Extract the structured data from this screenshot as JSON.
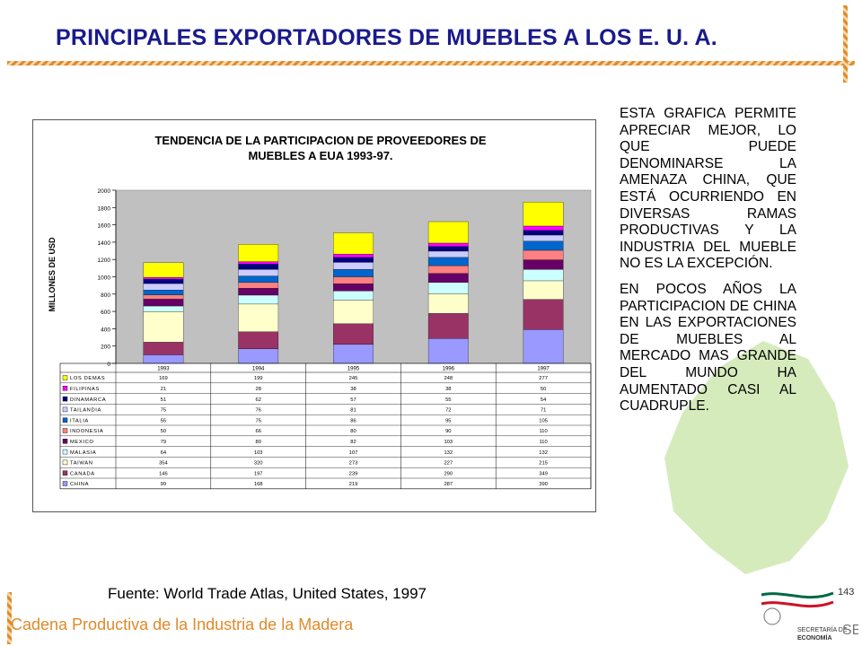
{
  "page": {
    "title": "PRINCIPALES EXPORTADORES  DE MUEBLES A LOS  E. U. A.",
    "side_paragraphs": [
      "ESTA GRAFICA PERMITE APRECIAR MEJOR, LO QUE PUEDE DENOMINARSE LA AMENAZA CHINA, QUE ESTÁ OCURRIENDO EN DIVERSAS RAMAS PRODUCTIVAS Y LA INDUSTRIA DEL MUEBLE NO ES LA EXCEPCIÓN.",
      "EN POCOS AÑOS LA PARTICIPACION DE CHINA EN LAS EXPORTACIONES DE MUEBLES AL MERCADO MAS GRANDE DEL MUNDO HA AUMENTADO CASI AL CUADRUPLE."
    ],
    "source": "Fuente: World Trade Atlas, United States, 1997",
    "footer": "Cadena Productiva de la Industria de la Madera",
    "page_number": "143",
    "logo_text": [
      "SECRETARÍA DE",
      "ECONOMÍA"
    ],
    "logo_mark": "SE"
  },
  "colors": {
    "title": "#1a1a8c",
    "rope": "#e08a2a",
    "plot_bg": "#c0c0c0",
    "map": "#cfe8b0"
  },
  "chart_data": {
    "type": "bar",
    "stacked": true,
    "title_lines": [
      "TENDENCIA DE LA PARTICIPACION DE PROVEEDORES DE",
      "MUEBLES A EUA 1993-97."
    ],
    "xlabel": "",
    "ylabel": "MILLONES DE USD",
    "ylim": [
      0,
      2000
    ],
    "yticks": [
      0,
      200,
      400,
      600,
      800,
      1000,
      1200,
      1400,
      1600,
      1800,
      2000
    ],
    "grid": false,
    "legend": "data-table",
    "categories": [
      "1993",
      "1994",
      "1995",
      "1996",
      "1997"
    ],
    "series": [
      {
        "name": "CHINA",
        "color": "#9999ff",
        "values": [
          99,
          168,
          219,
          287,
          390
        ]
      },
      {
        "name": "CANADA",
        "color": "#993366",
        "values": [
          146,
          197,
          239,
          290,
          349
        ]
      },
      {
        "name": "TAIWAN",
        "color": "#ffffcc",
        "values": [
          354,
          320,
          273,
          227,
          215
        ]
      },
      {
        "name": "MALASIA",
        "color": "#ccffff",
        "values": [
          64,
          103,
          107,
          132,
          132
        ]
      },
      {
        "name": "MEXICO",
        "color": "#660066",
        "values": [
          79,
          80,
          82,
          103,
          110
        ]
      },
      {
        "name": "INDONESIA",
        "color": "#ff8080",
        "values": [
          50,
          66,
          80,
          90,
          110
        ]
      },
      {
        "name": "ITALIA",
        "color": "#0066cc",
        "values": [
          55,
          75,
          86,
          95,
          105
        ]
      },
      {
        "name": "TAILANDIA",
        "color": "#ccccff",
        "values": [
          75,
          76,
          81,
          72,
          71
        ]
      },
      {
        "name": "DINAMARCA",
        "color": "#000080",
        "values": [
          51,
          62,
          57,
          55,
          54
        ]
      },
      {
        "name": "FILIPINAS",
        "color": "#ff00ff",
        "values": [
          21,
          28,
          38,
          38,
          50
        ]
      },
      {
        "name": "LOS DEMAS",
        "color": "#ffff00",
        "values": [
          169,
          199,
          245,
          248,
          277
        ]
      }
    ]
  }
}
